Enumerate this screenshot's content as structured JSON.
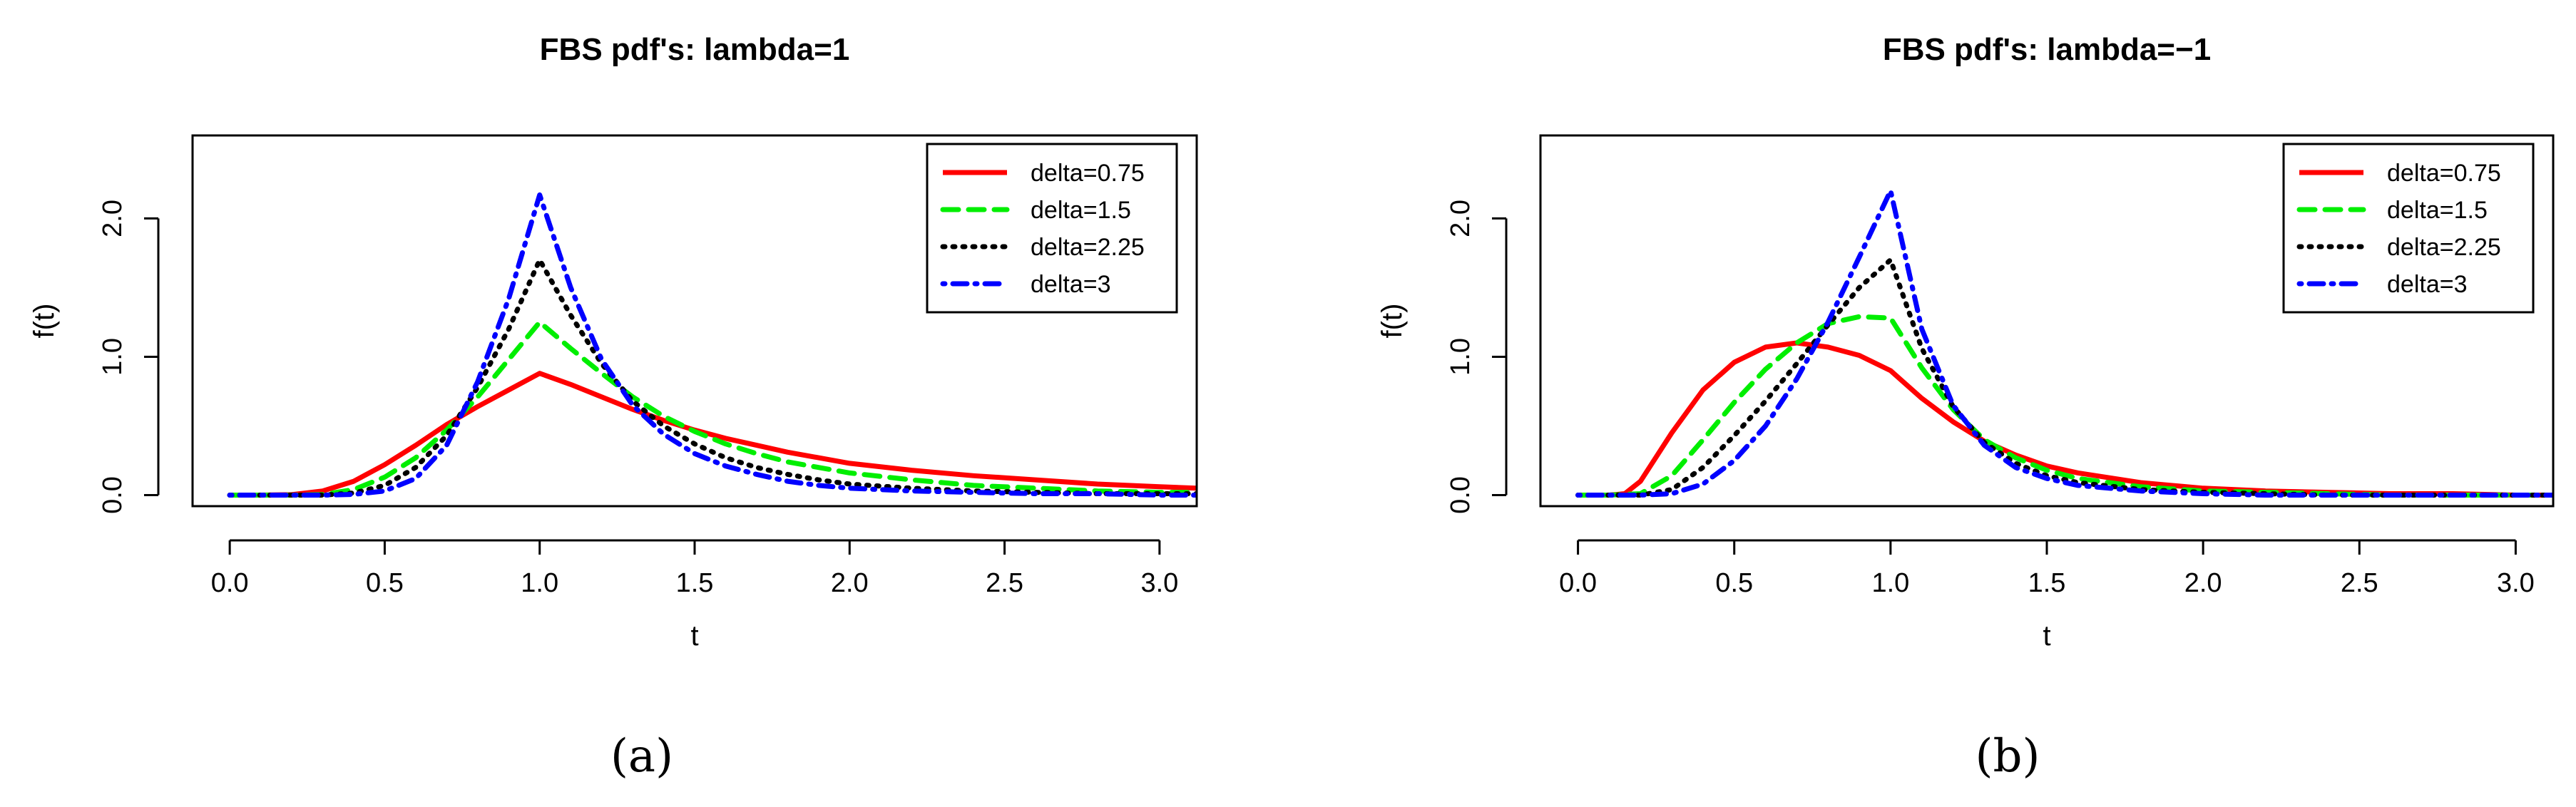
{
  "chart_data": [
    {
      "type": "line",
      "title": "FBS pdf's: lambda=1",
      "xlabel": "t",
      "ylabel": "f(t)",
      "xlim": [
        -0.12,
        3.12
      ],
      "ylim": [
        -0.08,
        2.6
      ],
      "xticks": [
        "0.0",
        "0.5",
        "1.0",
        "1.5",
        "2.0",
        "2.5",
        "3.0"
      ],
      "yticks": [
        "0.0",
        "1.0",
        "2.0"
      ],
      "legend_position": "top-right",
      "caption": "(a)",
      "series": [
        {
          "name": "delta=0.75",
          "color": "#ff0000",
          "dash": "solid",
          "x": [
            0.0,
            0.1,
            0.2,
            0.3,
            0.4,
            0.5,
            0.6,
            0.7,
            0.8,
            0.9,
            1.0,
            1.1,
            1.2,
            1.3,
            1.4,
            1.5,
            1.6,
            1.7,
            1.8,
            1.9,
            2.0,
            2.2,
            2.4,
            2.6,
            2.8,
            3.0,
            3.12
          ],
          "y": [
            0.0,
            0.0,
            0.003,
            0.03,
            0.1,
            0.22,
            0.36,
            0.51,
            0.64,
            0.76,
            0.88,
            0.8,
            0.71,
            0.62,
            0.54,
            0.47,
            0.41,
            0.36,
            0.31,
            0.27,
            0.23,
            0.18,
            0.14,
            0.11,
            0.08,
            0.06,
            0.05
          ]
        },
        {
          "name": "delta=1.5",
          "color": "#00ee00",
          "dash": "dashed",
          "x": [
            0.0,
            0.1,
            0.2,
            0.3,
            0.4,
            0.5,
            0.6,
            0.7,
            0.8,
            0.9,
            1.0,
            1.1,
            1.2,
            1.3,
            1.4,
            1.5,
            1.6,
            1.7,
            1.8,
            1.9,
            2.0,
            2.2,
            2.4,
            2.6,
            2.8,
            3.0,
            3.12
          ],
          "y": [
            0.0,
            0.0,
            0.0,
            0.004,
            0.04,
            0.13,
            0.27,
            0.47,
            0.71,
            0.98,
            1.25,
            1.06,
            0.88,
            0.71,
            0.57,
            0.46,
            0.37,
            0.3,
            0.24,
            0.2,
            0.16,
            0.11,
            0.07,
            0.05,
            0.03,
            0.02,
            0.02
          ]
        },
        {
          "name": "delta=2.25",
          "color": "#000000",
          "dash": "dotted",
          "x": [
            0.0,
            0.1,
            0.2,
            0.3,
            0.4,
            0.5,
            0.6,
            0.7,
            0.8,
            0.9,
            1.0,
            1.1,
            1.2,
            1.3,
            1.4,
            1.5,
            1.6,
            1.7,
            1.8,
            1.9,
            2.0,
            2.2,
            2.4,
            2.6,
            2.8,
            3.0,
            3.12
          ],
          "y": [
            0.0,
            0.0,
            0.0,
            0.0,
            0.015,
            0.07,
            0.2,
            0.43,
            0.78,
            1.2,
            1.7,
            1.3,
            0.95,
            0.68,
            0.5,
            0.37,
            0.27,
            0.2,
            0.15,
            0.11,
            0.08,
            0.05,
            0.03,
            0.02,
            0.01,
            0.01,
            0.01
          ]
        },
        {
          "name": "delta=3",
          "color": "#0000ff",
          "dash": "dotdash",
          "x": [
            0.0,
            0.1,
            0.2,
            0.3,
            0.4,
            0.5,
            0.6,
            0.7,
            0.8,
            0.9,
            1.0,
            1.1,
            1.2,
            1.3,
            1.4,
            1.5,
            1.6,
            1.7,
            1.8,
            1.9,
            2.0,
            2.2,
            2.4,
            2.6,
            2.8,
            3.0,
            3.12
          ],
          "y": [
            0.0,
            0.0,
            0.0,
            0.0,
            0.005,
            0.03,
            0.12,
            0.36,
            0.82,
            1.42,
            2.17,
            1.5,
            0.98,
            0.65,
            0.44,
            0.3,
            0.21,
            0.15,
            0.1,
            0.07,
            0.05,
            0.03,
            0.02,
            0.01,
            0.01,
            0.0,
            0.0
          ]
        }
      ]
    },
    {
      "type": "line",
      "title": "FBS pdf's: lambda=−1",
      "xlabel": "t",
      "ylabel": "f(t)",
      "xlim": [
        -0.12,
        3.12
      ],
      "ylim": [
        -0.08,
        2.6
      ],
      "xticks": [
        "0.0",
        "0.5",
        "1.0",
        "1.5",
        "2.0",
        "2.5",
        "3.0"
      ],
      "yticks": [
        "0.0",
        "1.0",
        "2.0"
      ],
      "legend_position": "top-right",
      "caption": "(b)",
      "series": [
        {
          "name": "delta=0.75",
          "color": "#ff0000",
          "dash": "solid",
          "x": [
            0.0,
            0.1,
            0.15,
            0.2,
            0.3,
            0.4,
            0.5,
            0.6,
            0.7,
            0.8,
            0.9,
            1.0,
            1.1,
            1.2,
            1.3,
            1.4,
            1.5,
            1.6,
            1.8,
            2.0,
            2.2,
            2.4,
            2.6,
            2.8,
            3.0,
            3.12
          ],
          "y": [
            0.0,
            0.0,
            0.01,
            0.1,
            0.45,
            0.76,
            0.96,
            1.07,
            1.1,
            1.07,
            1.01,
            0.9,
            0.7,
            0.53,
            0.39,
            0.29,
            0.21,
            0.16,
            0.09,
            0.05,
            0.03,
            0.02,
            0.01,
            0.01,
            0.0,
            0.0
          ]
        },
        {
          "name": "delta=1.5",
          "color": "#00ee00",
          "dash": "dashed",
          "x": [
            0.0,
            0.1,
            0.2,
            0.3,
            0.4,
            0.5,
            0.6,
            0.7,
            0.8,
            0.9,
            1.0,
            1.1,
            1.2,
            1.3,
            1.4,
            1.5,
            1.6,
            1.8,
            2.0,
            2.2,
            2.4,
            2.6,
            2.8,
            3.0,
            3.12
          ],
          "y": [
            0.0,
            0.0,
            0.01,
            0.14,
            0.4,
            0.67,
            0.91,
            1.1,
            1.24,
            1.29,
            1.28,
            0.92,
            0.62,
            0.4,
            0.27,
            0.18,
            0.12,
            0.06,
            0.03,
            0.02,
            0.01,
            0.0,
            0.0,
            0.0,
            0.0
          ]
        },
        {
          "name": "delta=2.25",
          "color": "#000000",
          "dash": "dotted",
          "x": [
            0.0,
            0.1,
            0.2,
            0.3,
            0.4,
            0.5,
            0.6,
            0.7,
            0.8,
            0.9,
            1.0,
            1.1,
            1.2,
            1.3,
            1.4,
            1.5,
            1.6,
            1.8,
            2.0,
            2.2,
            2.4,
            2.6,
            2.8,
            3.0,
            3.12
          ],
          "y": [
            0.0,
            0.0,
            0.0,
            0.04,
            0.2,
            0.43,
            0.68,
            0.95,
            1.23,
            1.5,
            1.7,
            1.06,
            0.64,
            0.38,
            0.23,
            0.14,
            0.09,
            0.04,
            0.02,
            0.01,
            0.0,
            0.0,
            0.0,
            0.0,
            0.0
          ]
        },
        {
          "name": "delta=3",
          "color": "#0000ff",
          "dash": "dotdash",
          "x": [
            0.0,
            0.1,
            0.2,
            0.3,
            0.4,
            0.5,
            0.6,
            0.7,
            0.8,
            0.9,
            1.0,
            1.1,
            1.2,
            1.3,
            1.4,
            1.5,
            1.6,
            1.8,
            2.0,
            2.2,
            2.4,
            2.6,
            2.8,
            3.0,
            3.12
          ],
          "y": [
            0.0,
            0.0,
            0.0,
            0.01,
            0.08,
            0.25,
            0.5,
            0.84,
            1.25,
            1.72,
            2.2,
            1.2,
            0.65,
            0.36,
            0.2,
            0.12,
            0.07,
            0.03,
            0.01,
            0.0,
            0.0,
            0.0,
            0.0,
            0.0,
            0.0
          ]
        }
      ]
    }
  ]
}
